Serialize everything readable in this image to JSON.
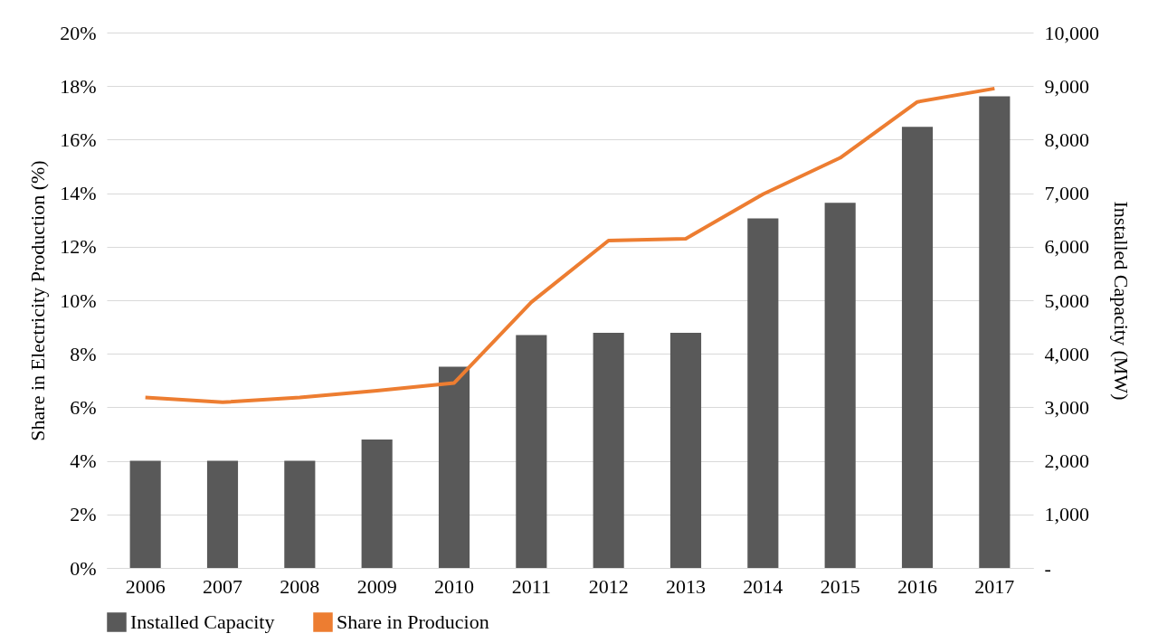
{
  "chart_data": {
    "type": "bar",
    "categories": [
      "2006",
      "2007",
      "2008",
      "2009",
      "2010",
      "2011",
      "2012",
      "2013",
      "2014",
      "2015",
      "2016",
      "2017"
    ],
    "series": [
      {
        "name": "Installed Capacity",
        "type": "bar",
        "axis": "y2",
        "color": "#595959",
        "values": [
          2000,
          2000,
          2000,
          2400,
          3760,
          4350,
          4390,
          4390,
          6530,
          6820,
          8240,
          8810
        ]
      },
      {
        "name": "Share in Producion",
        "type": "line",
        "color": "#ed7d31",
        "values": [
          6.37,
          6.19,
          6.37,
          6.62,
          6.91,
          9.93,
          12.23,
          12.3,
          13.96,
          15.32,
          17.41,
          17.91
        ]
      }
    ],
    "ylabel": "Share in Electricity Production (%)",
    "y2label": "Installed Capacity (MW)",
    "ylim": [
      0,
      20
    ],
    "yticks": [
      {
        "value": 0,
        "label": "0%"
      },
      {
        "value": 2,
        "label": "2%"
      },
      {
        "value": 4,
        "label": "4%"
      },
      {
        "value": 6,
        "label": "6%"
      },
      {
        "value": 8,
        "label": "8%"
      },
      {
        "value": 10,
        "label": "10%"
      },
      {
        "value": 12,
        "label": "12%"
      },
      {
        "value": 14,
        "label": "14%"
      },
      {
        "value": 16,
        "label": "16%"
      },
      {
        "value": 18,
        "label": "18%"
      },
      {
        "value": 20,
        "label": "20%"
      }
    ],
    "y2lim": [
      0,
      10000
    ],
    "y2ticks": [
      {
        "value": 0,
        "label": "-"
      },
      {
        "value": 1000,
        "label": "1,000"
      },
      {
        "value": 2000,
        "label": "2,000"
      },
      {
        "value": 3000,
        "label": "3,000"
      },
      {
        "value": 4000,
        "label": "4,000"
      },
      {
        "value": 5000,
        "label": "5,000"
      },
      {
        "value": 6000,
        "label": "6,000"
      },
      {
        "value": 7000,
        "label": "7,000"
      },
      {
        "value": 8000,
        "label": "8,000"
      },
      {
        "value": 9000,
        "label": "9,000"
      },
      {
        "value": 10000,
        "label": "10,000"
      }
    ],
    "grid": "y",
    "legend": "bottom",
    "marker": "none",
    "line_style": "solid"
  }
}
